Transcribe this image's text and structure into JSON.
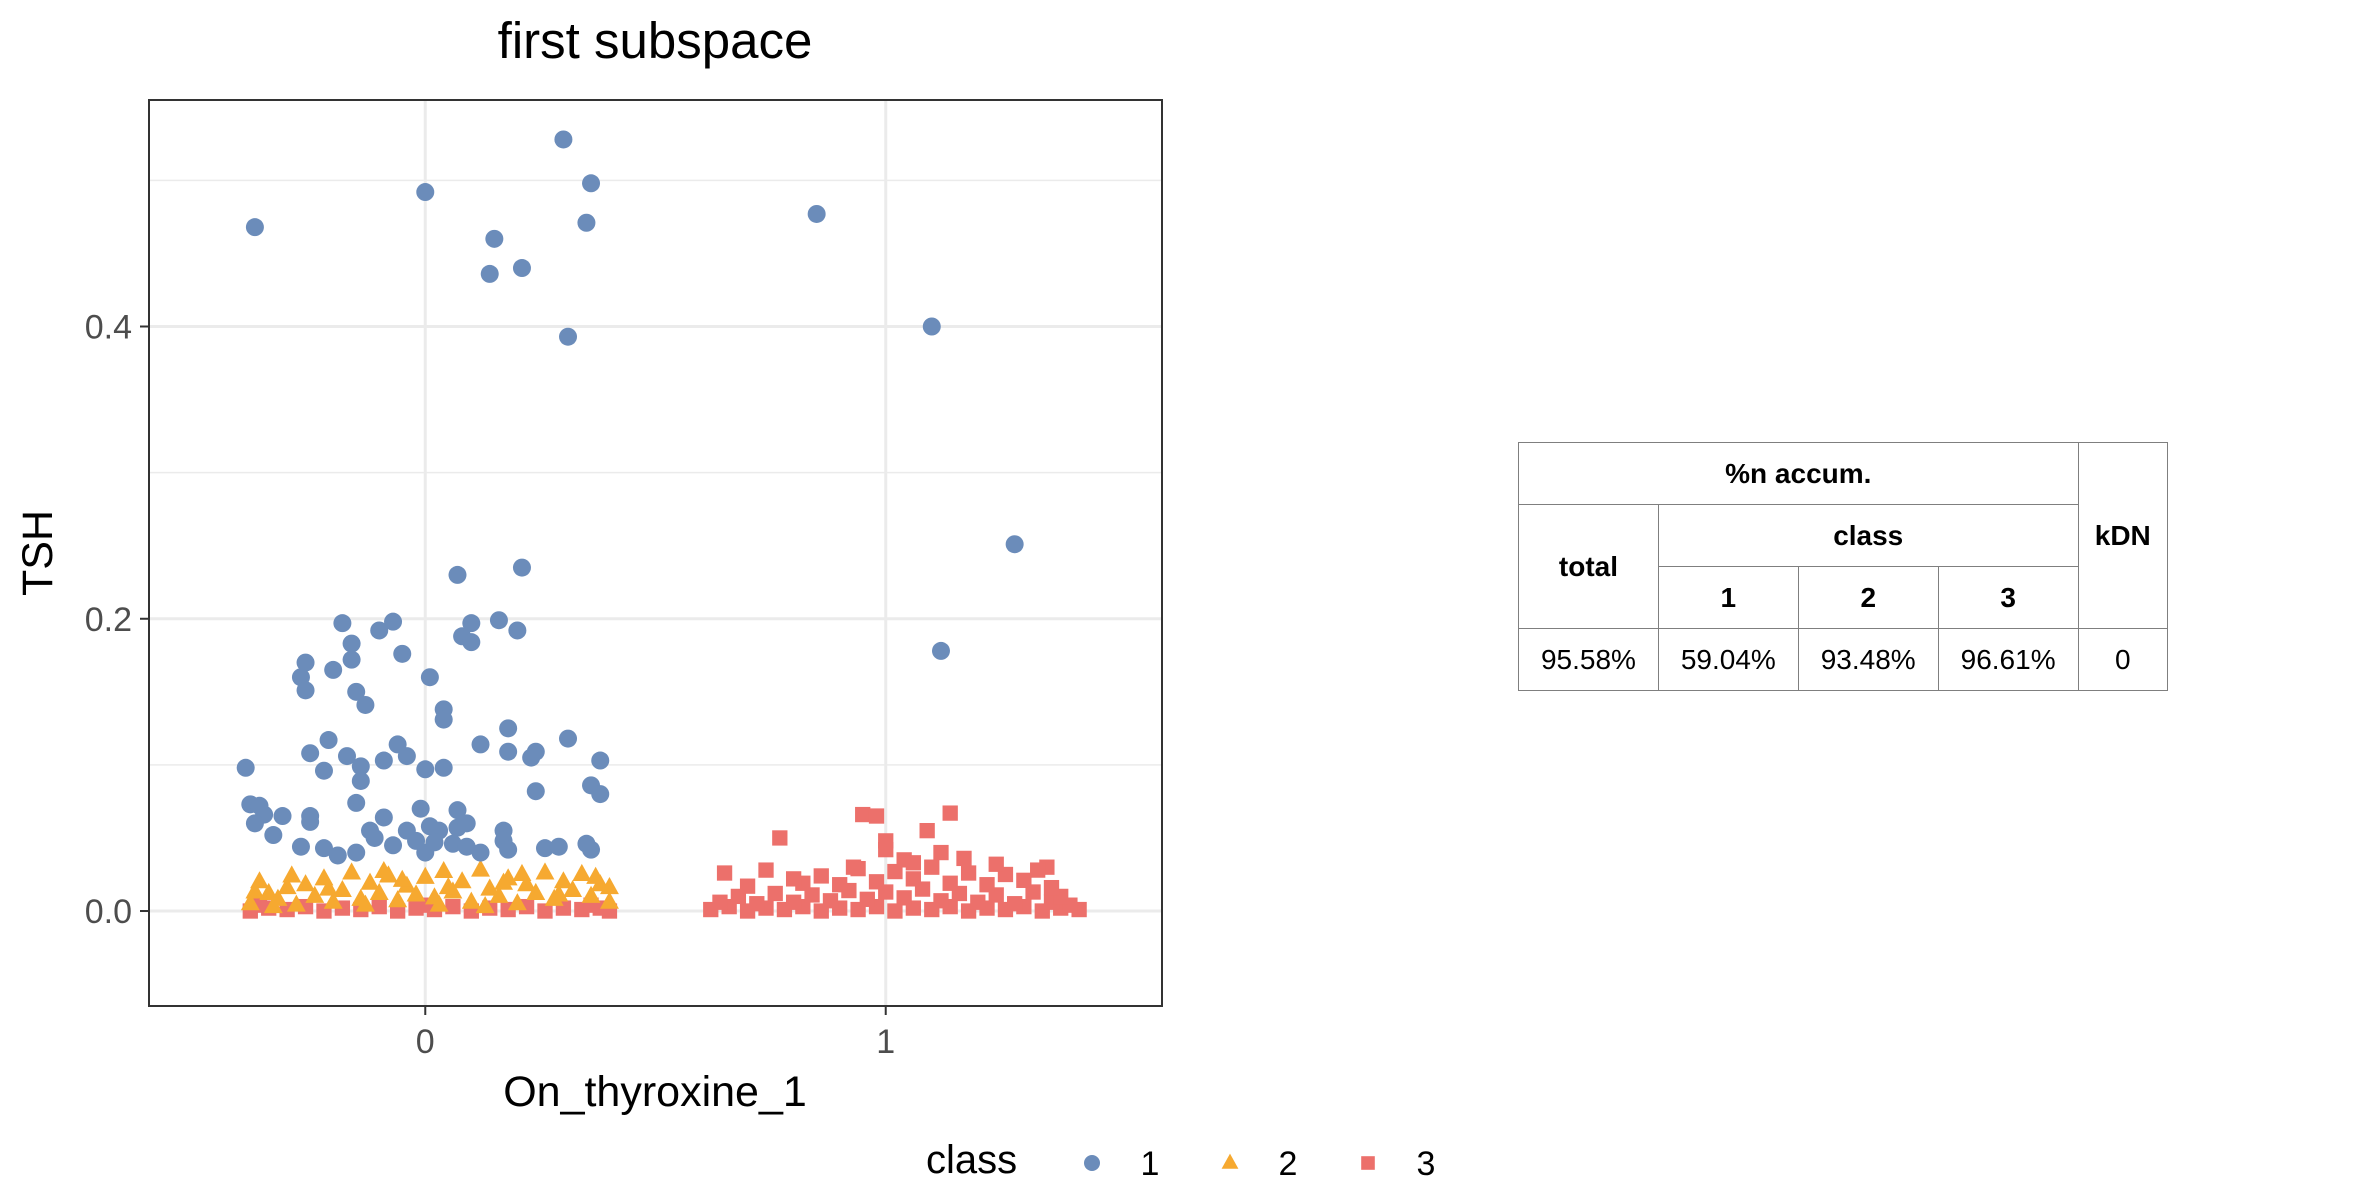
{
  "chart_data": {
    "type": "scatter",
    "title": "first subspace",
    "xlabel": "On_thyroxine_1",
    "ylabel": "TSH",
    "xlim": [
      -0.6,
      1.6
    ],
    "ylim": [
      -0.065,
      0.555
    ],
    "x_ticks": [
      {
        "value": 0,
        "label": "0"
      },
      {
        "value": 1,
        "label": "1"
      }
    ],
    "y_ticks": [
      {
        "value": 0.0,
        "label": "0.0"
      },
      {
        "value": 0.2,
        "label": "0.2"
      },
      {
        "value": 0.4,
        "label": "0.4"
      }
    ],
    "y_minor_grid": [
      0.1,
      0.3,
      0.5
    ],
    "grid": true,
    "legend": {
      "title": "class",
      "position": "bottom",
      "entries": [
        {
          "label": "1",
          "shape": "circle",
          "color": "#6b8cba"
        },
        {
          "label": "2",
          "shape": "triangle",
          "color": "#f6a930"
        },
        {
          "label": "3",
          "shape": "square",
          "color": "#ec706b"
        }
      ]
    },
    "series": [
      {
        "name": "1",
        "shape": "circle",
        "color": "#6b8cba",
        "points": [
          [
            -0.37,
            0.468
          ],
          [
            0.0,
            0.492
          ],
          [
            0.3,
            0.528
          ],
          [
            0.36,
            0.498
          ],
          [
            0.35,
            0.471
          ],
          [
            0.15,
            0.46
          ],
          [
            0.21,
            0.44
          ],
          [
            0.14,
            0.436
          ],
          [
            0.31,
            0.393
          ],
          [
            0.85,
            0.477
          ],
          [
            1.1,
            0.4
          ],
          [
            1.28,
            0.251
          ],
          [
            1.12,
            0.178
          ],
          [
            0.07,
            0.23
          ],
          [
            0.21,
            0.235
          ],
          [
            -0.18,
            0.197
          ],
          [
            -0.07,
            0.198
          ],
          [
            -0.1,
            0.192
          ],
          [
            0.16,
            0.199
          ],
          [
            0.1,
            0.197
          ],
          [
            0.08,
            0.188
          ],
          [
            0.1,
            0.184
          ],
          [
            0.2,
            0.192
          ],
          [
            -0.16,
            0.183
          ],
          [
            -0.16,
            0.172
          ],
          [
            -0.05,
            0.176
          ],
          [
            -0.26,
            0.17
          ],
          [
            -0.2,
            0.165
          ],
          [
            -0.27,
            0.16
          ],
          [
            0.01,
            0.16
          ],
          [
            -0.26,
            0.151
          ],
          [
            -0.15,
            0.15
          ],
          [
            -0.13,
            0.141
          ],
          [
            0.04,
            0.138
          ],
          [
            0.04,
            0.131
          ],
          [
            0.18,
            0.125
          ],
          [
            -0.21,
            0.117
          ],
          [
            -0.06,
            0.114
          ],
          [
            0.12,
            0.114
          ],
          [
            0.31,
            0.118
          ],
          [
            -0.25,
            0.108
          ],
          [
            -0.17,
            0.106
          ],
          [
            -0.09,
            0.103
          ],
          [
            -0.04,
            0.106
          ],
          [
            0.18,
            0.109
          ],
          [
            0.24,
            0.109
          ],
          [
            0.23,
            0.105
          ],
          [
            0.38,
            0.103
          ],
          [
            -0.39,
            0.098
          ],
          [
            -0.14,
            0.099
          ],
          [
            -0.22,
            0.096
          ],
          [
            0.0,
            0.097
          ],
          [
            0.04,
            0.098
          ],
          [
            -0.14,
            0.089
          ],
          [
            0.36,
            0.086
          ],
          [
            0.38,
            0.08
          ],
          [
            0.24,
            0.082
          ],
          [
            -0.38,
            0.073
          ],
          [
            -0.36,
            0.072
          ],
          [
            -0.15,
            0.074
          ],
          [
            -0.35,
            0.066
          ],
          [
            -0.31,
            0.065
          ],
          [
            -0.25,
            0.065
          ],
          [
            -0.37,
            0.06
          ],
          [
            -0.25,
            0.061
          ],
          [
            -0.09,
            0.064
          ],
          [
            -0.01,
            0.07
          ],
          [
            0.07,
            0.069
          ],
          [
            -0.33,
            0.052
          ],
          [
            -0.12,
            0.055
          ],
          [
            -0.11,
            0.05
          ],
          [
            -0.04,
            0.055
          ],
          [
            -0.02,
            0.048
          ],
          [
            0.01,
            0.058
          ],
          [
            0.03,
            0.055
          ],
          [
            0.07,
            0.057
          ],
          [
            0.09,
            0.06
          ],
          [
            0.17,
            0.055
          ],
          [
            0.17,
            0.048
          ],
          [
            0.02,
            0.047
          ],
          [
            0.06,
            0.046
          ],
          [
            0.09,
            0.044
          ],
          [
            -0.27,
            0.044
          ],
          [
            -0.22,
            0.043
          ],
          [
            -0.07,
            0.045
          ],
          [
            -0.15,
            0.04
          ],
          [
            0.18,
            0.042
          ],
          [
            0.26,
            0.043
          ],
          [
            0.29,
            0.044
          ],
          [
            0.35,
            0.046
          ],
          [
            0.36,
            0.042
          ],
          [
            0.12,
            0.04
          ],
          [
            0.0,
            0.04
          ],
          [
            -0.19,
            0.038
          ]
        ]
      },
      {
        "name": "2",
        "shape": "triangle",
        "color": "#f6a930",
        "points": [
          [
            -0.38,
            0.005
          ],
          [
            -0.36,
            0.02
          ],
          [
            -0.34,
            0.012
          ],
          [
            -0.32,
            0.008
          ],
          [
            -0.3,
            0.016
          ],
          [
            -0.28,
            0.004
          ],
          [
            -0.26,
            0.018
          ],
          [
            -0.24,
            0.01
          ],
          [
            -0.22,
            0.022
          ],
          [
            -0.2,
            0.006
          ],
          [
            -0.18,
            0.014
          ],
          [
            -0.16,
            0.026
          ],
          [
            -0.14,
            0.008
          ],
          [
            -0.12,
            0.019
          ],
          [
            -0.1,
            0.012
          ],
          [
            -0.08,
            0.024
          ],
          [
            -0.06,
            0.007
          ],
          [
            -0.04,
            0.017
          ],
          [
            -0.02,
            0.011
          ],
          [
            0.0,
            0.023
          ],
          [
            0.02,
            0.009
          ],
          [
            0.03,
            0.004
          ],
          [
            0.04,
            0.027
          ],
          [
            0.06,
            0.013
          ],
          [
            0.08,
            0.02
          ],
          [
            0.1,
            0.006
          ],
          [
            0.12,
            0.028
          ],
          [
            0.14,
            0.015
          ],
          [
            0.16,
            0.01
          ],
          [
            0.18,
            0.022
          ],
          [
            0.2,
            0.005
          ],
          [
            0.22,
            0.018
          ],
          [
            0.24,
            0.012
          ],
          [
            0.26,
            0.026
          ],
          [
            0.28,
            0.008
          ],
          [
            0.3,
            0.02
          ],
          [
            0.32,
            0.014
          ],
          [
            0.34,
            0.025
          ],
          [
            0.36,
            0.01
          ],
          [
            0.38,
            0.018
          ],
          [
            0.4,
            0.006
          ],
          [
            -0.37,
            0.013
          ],
          [
            -0.29,
            0.024
          ],
          [
            -0.21,
            0.015
          ],
          [
            -0.13,
            0.004
          ],
          [
            -0.05,
            0.021
          ],
          [
            0.05,
            0.016
          ],
          [
            0.13,
            0.003
          ],
          [
            0.21,
            0.025
          ],
          [
            0.29,
            0.011
          ],
          [
            0.37,
            0.023
          ],
          [
            0.4,
            0.016
          ],
          [
            -0.33,
            0.003
          ],
          [
            0.17,
            0.019
          ],
          [
            -0.09,
            0.027
          ]
        ]
      },
      {
        "name": "3",
        "shape": "square",
        "color": "#ec706b",
        "points": [
          [
            -0.38,
            0.0
          ],
          [
            -0.34,
            0.002
          ],
          [
            -0.3,
            0.001
          ],
          [
            -0.26,
            0.003
          ],
          [
            -0.22,
            0.0
          ],
          [
            -0.18,
            0.002
          ],
          [
            -0.14,
            0.001
          ],
          [
            -0.1,
            0.003
          ],
          [
            -0.06,
            0.0
          ],
          [
            -0.02,
            0.002
          ],
          [
            0.02,
            0.001
          ],
          [
            0.06,
            0.003
          ],
          [
            0.1,
            0.0
          ],
          [
            0.14,
            0.002
          ],
          [
            0.18,
            0.001
          ],
          [
            0.22,
            0.003
          ],
          [
            0.26,
            0.0
          ],
          [
            0.3,
            0.002
          ],
          [
            0.34,
            0.001
          ],
          [
            0.38,
            0.002
          ],
          [
            0.4,
            0.0
          ],
          [
            -0.36,
            0.004
          ],
          [
            0.0,
            0.004
          ],
          [
            0.36,
            0.004
          ],
          [
            0.62,
            0.001
          ],
          [
            0.66,
            0.003
          ],
          [
            0.7,
            0.0
          ],
          [
            0.74,
            0.002
          ],
          [
            0.78,
            0.001
          ],
          [
            0.82,
            0.003
          ],
          [
            0.86,
            0.0
          ],
          [
            0.9,
            0.002
          ],
          [
            0.94,
            0.001
          ],
          [
            0.98,
            0.003
          ],
          [
            1.02,
            0.0
          ],
          [
            1.06,
            0.002
          ],
          [
            1.1,
            0.001
          ],
          [
            1.14,
            0.003
          ],
          [
            1.18,
            0.0
          ],
          [
            1.22,
            0.002
          ],
          [
            1.26,
            0.001
          ],
          [
            1.3,
            0.003
          ],
          [
            1.34,
            0.0
          ],
          [
            1.38,
            0.002
          ],
          [
            1.42,
            0.001
          ],
          [
            0.64,
            0.006
          ],
          [
            0.72,
            0.005
          ],
          [
            0.8,
            0.006
          ],
          [
            0.88,
            0.007
          ],
          [
            0.96,
            0.008
          ],
          [
            1.04,
            0.009
          ],
          [
            1.12,
            0.007
          ],
          [
            1.2,
            0.006
          ],
          [
            1.28,
            0.005
          ],
          [
            1.36,
            0.006
          ],
          [
            1.4,
            0.004
          ],
          [
            0.68,
            0.01
          ],
          [
            0.76,
            0.012
          ],
          [
            0.84,
            0.011
          ],
          [
            0.92,
            0.014
          ],
          [
            1.0,
            0.013
          ],
          [
            1.08,
            0.015
          ],
          [
            1.16,
            0.012
          ],
          [
            1.24,
            0.011
          ],
          [
            1.32,
            0.013
          ],
          [
            1.38,
            0.01
          ],
          [
            0.7,
            0.017
          ],
          [
            0.82,
            0.019
          ],
          [
            0.9,
            0.018
          ],
          [
            0.98,
            0.02
          ],
          [
            1.06,
            0.022
          ],
          [
            1.14,
            0.019
          ],
          [
            1.22,
            0.018
          ],
          [
            1.3,
            0.021
          ],
          [
            1.36,
            0.016
          ],
          [
            0.65,
            0.026
          ],
          [
            0.74,
            0.028
          ],
          [
            0.8,
            0.022
          ],
          [
            0.86,
            0.024
          ],
          [
            0.94,
            0.029
          ],
          [
            1.02,
            0.027
          ],
          [
            1.1,
            0.03
          ],
          [
            1.18,
            0.026
          ],
          [
            1.26,
            0.025
          ],
          [
            1.35,
            0.03
          ],
          [
            0.95,
            0.066
          ],
          [
            0.98,
            0.065
          ],
          [
            1.14,
            0.067
          ],
          [
            0.77,
            0.05
          ],
          [
            1.0,
            0.048
          ],
          [
            1.0,
            0.042
          ],
          [
            1.09,
            0.055
          ],
          [
            1.17,
            0.036
          ],
          [
            1.04,
            0.035
          ],
          [
            1.24,
            0.032
          ],
          [
            0.93,
            0.03
          ],
          [
            1.12,
            0.04
          ],
          [
            1.33,
            0.028
          ],
          [
            1.06,
            0.033
          ]
        ]
      }
    ]
  },
  "table": {
    "header_group": "%n accum.",
    "header_total": "total",
    "header_class": "class",
    "header_kdn": "kDN",
    "class_columns": [
      "1",
      "2",
      "3"
    ],
    "row": {
      "total": "95.58%",
      "class_1": "59.04%",
      "class_2": "93.48%",
      "class_3": "96.61%",
      "kdn": "0"
    }
  }
}
